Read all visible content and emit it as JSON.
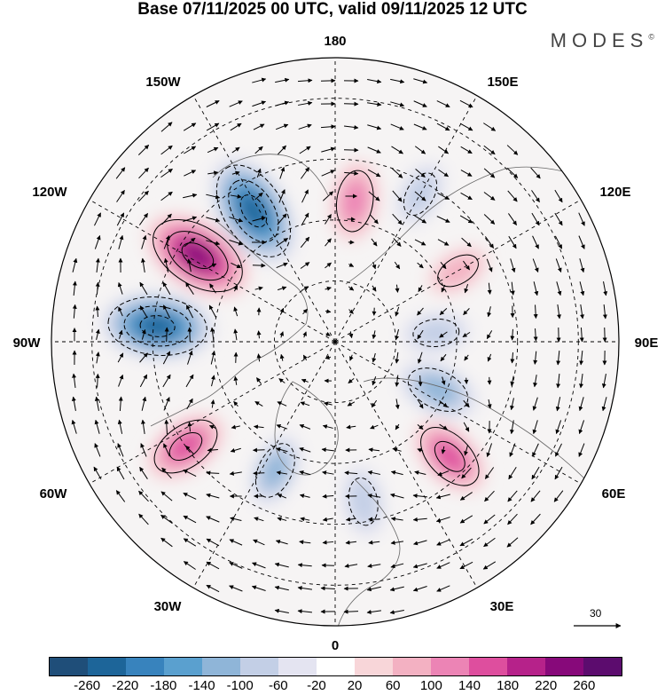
{
  "title": "Base 07/11/2025 00 UTC, valid 09/11/2025 12 UTC",
  "brand": "MODES",
  "brand_mark": "©",
  "longitude_labels": {
    "top": "180",
    "bottom": "0",
    "left": "90W",
    "right": "90E",
    "upper_left": "150W",
    "upper_right": "150E",
    "mid_left": "120W",
    "mid_right": "120E",
    "lower_left": "60W",
    "lower_right": "60E",
    "bottom_left": "30W",
    "bottom_right": "30E"
  },
  "wind_reference": {
    "value": "30"
  },
  "colorbar": {
    "colors": [
      "#1f4e79",
      "#1d6599",
      "#3883bd",
      "#5aa0cf",
      "#8fb5d8",
      "#c3cfe6",
      "#e4e4f1",
      "#ffffff",
      "#f8d6d9",
      "#f3b1c2",
      "#ec84b5",
      "#de4e9e",
      "#b6228a",
      "#87097a",
      "#5c0c6e"
    ],
    "labels": [
      "-260",
      "-220",
      "-180",
      "-140",
      "-100",
      "-60",
      "-20",
      "20",
      "60",
      "100",
      "140",
      "180",
      "220",
      "260"
    ]
  },
  "anomaly_centers": [
    {
      "lon": -148,
      "lat": 52,
      "value": -250
    },
    {
      "lon": -122,
      "lat": 50,
      "value": 240
    },
    {
      "lon": -95,
      "lat": 46,
      "value": -240
    },
    {
      "lon": -55,
      "lat": 45,
      "value": 150
    },
    {
      "lon": 172,
      "lat": 55,
      "value": 130
    },
    {
      "lon": 150,
      "lat": 48,
      "value": -90
    },
    {
      "lon": 95,
      "lat": 65,
      "value": -90
    },
    {
      "lon": 65,
      "lat": 62,
      "value": -140
    },
    {
      "lon": 45,
      "lat": 50,
      "value": 150
    },
    {
      "lon": -25,
      "lat": 55,
      "value": -110
    },
    {
      "lon": 10,
      "lat": 50,
      "value": -100
    },
    {
      "lon": 120,
      "lat": 55,
      "value": 80
    }
  ]
}
